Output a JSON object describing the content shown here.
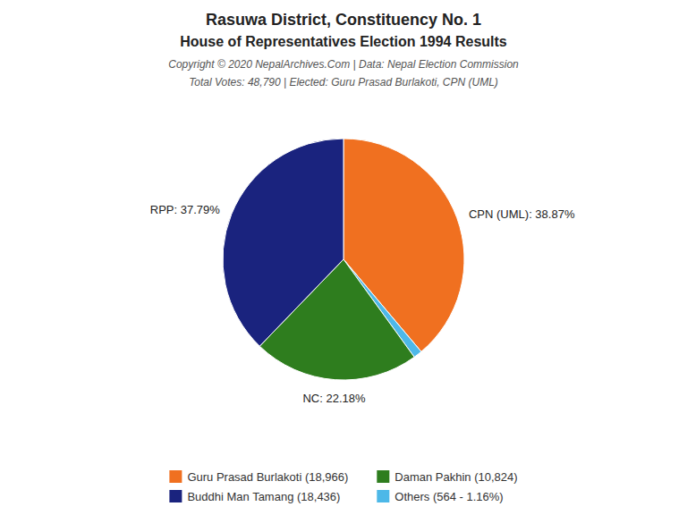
{
  "chart_data": {
    "type": "pie",
    "title": "Rasuwa District, Constituency No. 1",
    "subtitle": "House of Representatives Election 1994 Results",
    "annotations": [
      "Copyright © 2020 NepalArchives.Com | Data: Nepal Election Commission",
      "Total Votes: 48,790 | Elected: Guru Prasad Burlakoti, CPN (UML)"
    ],
    "categories": [
      "CPN (UML): 38.87%",
      null,
      "NC: 22.18%",
      "RPP: 37.79%"
    ],
    "values": [
      38.87,
      1.16,
      22.18,
      37.79
    ],
    "colors": [
      "#f07020",
      "#4db8e8",
      "#2e7d1e",
      "#1a237e"
    ],
    "legend": "bottom",
    "legend_entries": [
      {
        "label": "Guru Prasad Burlakoti (18,966)",
        "color": "#f07020"
      },
      {
        "label": "Buddhi Man Tamang (18,436)",
        "color": "#1a237e"
      },
      {
        "label": "Daman Pakhin (10,824)",
        "color": "#2e7d1e"
      },
      {
        "label": "Others (564 - 1.16%)",
        "color": "#4db8e8"
      }
    ]
  }
}
